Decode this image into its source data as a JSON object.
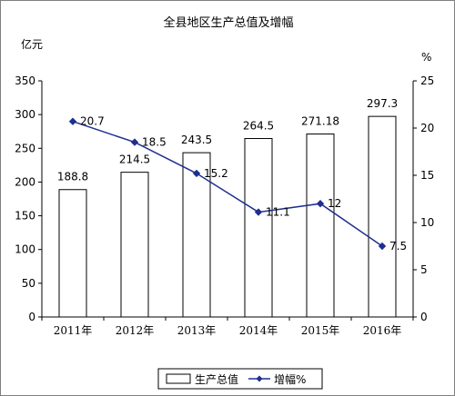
{
  "chart_data": {
    "type": "bar",
    "title": "全县地区生产总值及增幅",
    "categories": [
      "2011年",
      "2012年",
      "2013年",
      "2014年",
      "2015年",
      "2016年"
    ],
    "y_left_label": "亿元",
    "y_right_label": "%",
    "ylim_left": [
      0,
      350
    ],
    "y_ticks_left": [
      "0",
      "50",
      "100",
      "150",
      "200",
      "250",
      "300",
      "350"
    ],
    "ylim_right": [
      0,
      25
    ],
    "y_ticks_right": [
      "0",
      "5",
      "10",
      "15",
      "20",
      "25"
    ],
    "grid": false,
    "legend_position": "bottom",
    "colors": {
      "bar_fill": "#ffffff",
      "bar_stroke": "#000000",
      "line": "#1f2f8f"
    },
    "series": [
      {
        "name": "生产总值",
        "type": "bar",
        "axis": "left",
        "values": [
          188.8,
          214.5,
          243.5,
          264.5,
          271.18,
          297.3
        ],
        "labels": [
          "188.8",
          "214.5",
          "243.5",
          "264.5",
          "271.18",
          "297.3"
        ]
      },
      {
        "name": "增幅%",
        "type": "line",
        "axis": "right",
        "values": [
          20.7,
          18.5,
          15.2,
          11.1,
          12,
          7.5
        ],
        "labels": [
          "20.7",
          "18.5",
          "15.2",
          "11.1",
          "12",
          "7.5"
        ]
      }
    ]
  }
}
